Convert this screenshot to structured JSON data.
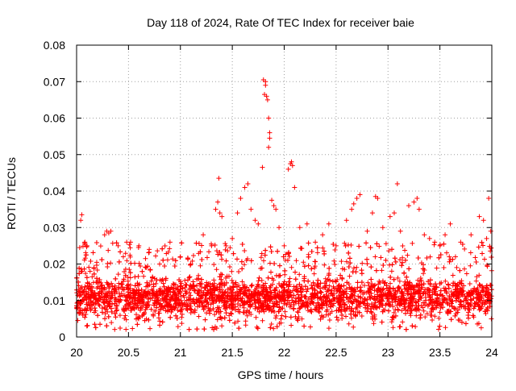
{
  "chart_data": {
    "type": "scatter",
    "title": "Day 118 of 2024, Rate Of TEC Index for receiver baie",
    "xlabel": "GPS time / hours",
    "ylabel": "ROTI / TECUs",
    "xlim": [
      20,
      24
    ],
    "ylim": [
      0,
      0.08
    ],
    "x_ticks": [
      "20",
      "20.5",
      "21",
      "21.5",
      "22",
      "22.5",
      "23",
      "23.5",
      "24"
    ],
    "y_ticks": [
      "0",
      "0.01",
      "0.02",
      "0.03",
      "0.04",
      "0.05",
      "0.06",
      "0.07",
      "0.08"
    ],
    "grid": true,
    "marker": "plus",
    "color": "#ff0000",
    "series": [
      {
        "points": [
          [
            20.02,
            0.0125
          ],
          [
            20.03,
            0.0245
          ],
          [
            20.04,
            0.032
          ],
          [
            20.05,
            0.0335
          ],
          [
            20.06,
            0.006
          ],
          [
            20.08,
            0.026
          ],
          [
            20.1,
            0.025
          ],
          [
            20.13,
            0.018
          ],
          [
            20.15,
            0.0165
          ],
          [
            20.2,
            0.01
          ],
          [
            20.27,
            0.028
          ],
          [
            20.29,
            0.029
          ],
          [
            20.31,
            0.0285
          ],
          [
            20.33,
            0.029
          ],
          [
            20.4,
            0.025
          ],
          [
            20.45,
            0.022
          ],
          [
            20.52,
            0.026
          ],
          [
            20.6,
            0.025
          ],
          [
            20.7,
            0.024
          ],
          [
            20.8,
            0.02
          ],
          [
            20.9,
            0.026
          ],
          [
            21.0,
            0.022
          ],
          [
            21.1,
            0.02
          ],
          [
            21.22,
            0.028
          ],
          [
            21.3,
            0.025
          ],
          [
            21.34,
            0.035
          ],
          [
            21.36,
            0.037
          ],
          [
            21.37,
            0.0435
          ],
          [
            21.38,
            0.034
          ],
          [
            21.4,
            0.033
          ],
          [
            21.44,
            0.025
          ],
          [
            21.5,
            0.027
          ],
          [
            21.55,
            0.034
          ],
          [
            21.58,
            0.038
          ],
          [
            21.62,
            0.041
          ],
          [
            21.65,
            0.042
          ],
          [
            21.68,
            0.035
          ],
          [
            21.72,
            0.032
          ],
          [
            21.75,
            0.031
          ],
          [
            21.79,
            0.0465
          ],
          [
            21.8,
            0.0705
          ],
          [
            21.81,
            0.0665
          ],
          [
            21.82,
            0.07
          ],
          [
            21.82,
            0.069
          ],
          [
            21.83,
            0.066
          ],
          [
            21.84,
            0.065
          ],
          [
            21.85,
            0.06
          ],
          [
            21.86,
            0.056
          ],
          [
            21.86,
            0.0545
          ],
          [
            21.85,
            0.052
          ],
          [
            21.88,
            0.0375
          ],
          [
            21.9,
            0.036
          ],
          [
            21.92,
            0.035
          ],
          [
            21.95,
            0.03
          ],
          [
            22.0,
            0.025
          ],
          [
            22.04,
            0.046
          ],
          [
            22.06,
            0.0475
          ],
          [
            22.07,
            0.048
          ],
          [
            22.08,
            0.047
          ],
          [
            22.1,
            0.041
          ],
          [
            22.15,
            0.03
          ],
          [
            22.22,
            0.031
          ],
          [
            22.3,
            0.026
          ],
          [
            22.37,
            0.028
          ],
          [
            22.43,
            0.031
          ],
          [
            22.5,
            0.025
          ],
          [
            22.6,
            0.032
          ],
          [
            22.65,
            0.035
          ],
          [
            22.67,
            0.0365
          ],
          [
            22.7,
            0.038
          ],
          [
            22.73,
            0.039
          ],
          [
            22.8,
            0.029
          ],
          [
            22.85,
            0.034
          ],
          [
            22.88,
            0.0385
          ],
          [
            22.9,
            0.038
          ],
          [
            22.95,
            0.03
          ],
          [
            23.02,
            0.033
          ],
          [
            23.06,
            0.034
          ],
          [
            23.09,
            0.042
          ],
          [
            23.12,
            0.029
          ],
          [
            23.2,
            0.036
          ],
          [
            23.25,
            0.037
          ],
          [
            23.28,
            0.038
          ],
          [
            23.3,
            0.035
          ],
          [
            23.35,
            0.028
          ],
          [
            23.4,
            0.027
          ],
          [
            23.45,
            0.026
          ],
          [
            23.5,
            0.025
          ],
          [
            23.55,
            0.028
          ],
          [
            23.6,
            0.031
          ],
          [
            23.65,
            0.022
          ],
          [
            23.7,
            0.026
          ],
          [
            23.8,
            0.028
          ],
          [
            23.88,
            0.033
          ],
          [
            23.92,
            0.032
          ],
          [
            23.95,
            0.027
          ],
          [
            23.97,
            0.038
          ],
          [
            23.99,
            0.029
          ]
        ]
      }
    ],
    "bulk": {
      "x_range": [
        20,
        24
      ],
      "y_range": [
        0.002,
        0.026
      ],
      "dense_band": [
        0.004,
        0.016
      ],
      "count": 3800
    }
  }
}
